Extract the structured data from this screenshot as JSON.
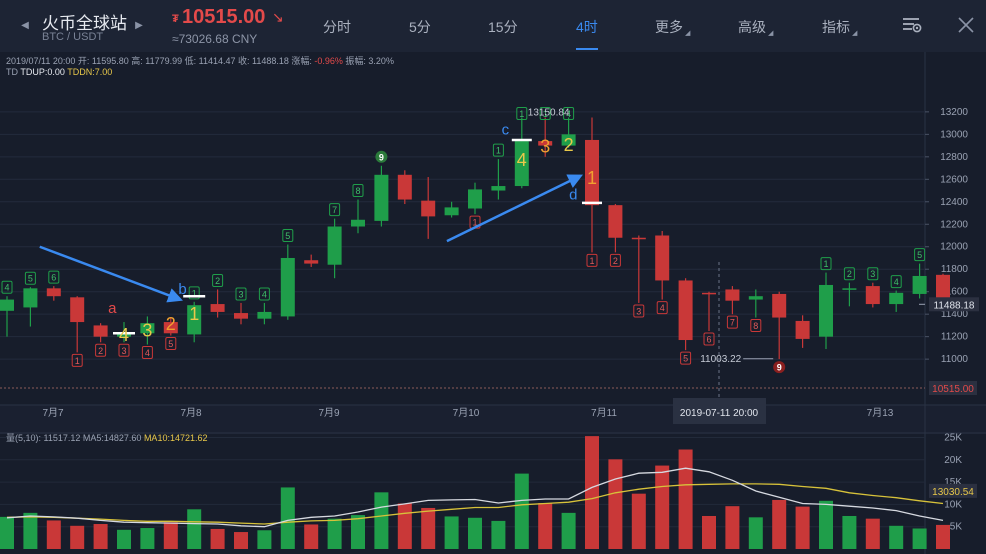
{
  "header": {
    "title": "火币全球站",
    "pair": "BTC / USDT",
    "price_symbol": "₮",
    "price": "10515.00",
    "price_cny": "≈73026.68 CNY",
    "tabs": [
      {
        "label": "分时",
        "active": false,
        "caret": false
      },
      {
        "label": "5分",
        "active": false,
        "caret": false
      },
      {
        "label": "15分",
        "active": false,
        "caret": false
      },
      {
        "label": "4时",
        "active": true,
        "caret": false
      },
      {
        "label": "更多",
        "active": false,
        "caret": true
      },
      {
        "label": "高级",
        "active": false,
        "caret": true
      },
      {
        "label": "指标",
        "active": false,
        "caret": true
      }
    ],
    "icons": [
      "chevron-left-icon",
      "chevron-right-icon",
      "arrow-down-right-icon",
      "chart-settings-icon",
      "close-icon"
    ]
  },
  "info": {
    "text": "2019/07/11 20:00 开: 11595.80 高: 11779.99 低: 11414.47 收: 11488.18 涨幅: ",
    "change": "-0.96%",
    "amplitude": " 振幅: 3.20%"
  },
  "td": {
    "label": "TD ",
    "up": "TDUP:0.00",
    "down": "TDDN:7.00"
  },
  "volume_info": {
    "text": "量(5,10): 11517.12 ",
    "ma5": "MA5:14827.60 ",
    "ma10": "MA10:14721.62"
  },
  "colors": {
    "up": "#1f9e4a",
    "down": "#c93838",
    "accent": "#3a8af0",
    "ma5": "#d6d9e0",
    "ma10": "#d7c23a"
  },
  "chart_data": {
    "type": "candlestick",
    "price_ticks": [
      11000,
      11200,
      11400,
      11600,
      11800,
      12000,
      12200,
      12400,
      12600,
      12800,
      13000,
      13200
    ],
    "price_range": [
      10480,
      13580
    ],
    "volume_ticks": [
      "5K",
      "10K",
      "15K",
      "20K",
      "25K"
    ],
    "volume_range": [
      0,
      26000
    ],
    "x_labels": [
      "7月7",
      "7月8",
      "7月9",
      "7月10",
      "7月11",
      "7月13"
    ],
    "crosshair_time": "2019-07-11 20:00",
    "current_price_label": "11488.18",
    "last_price_label": "10515.00",
    "volume_current_label": "13030.54",
    "high_label": "13150.84",
    "low_label": "11003.22",
    "candles": [
      {
        "o": 11430,
        "h": 11560,
        "l": 11200,
        "c": 11530,
        "v": 7200,
        "td": "4",
        "tdc": "g"
      },
      {
        "o": 11460,
        "h": 11640,
        "l": 11290,
        "c": 11630,
        "v": 8100,
        "td": "5",
        "tdc": "g"
      },
      {
        "o": 11630,
        "h": 11650,
        "l": 11520,
        "c": 11560,
        "v": 6400,
        "td": "6",
        "tdc": "g"
      },
      {
        "o": 11550,
        "h": 11560,
        "l": 11060,
        "c": 11330,
        "v": 5200,
        "td": "1",
        "tdc": "r"
      },
      {
        "o": 11300,
        "h": 11320,
        "l": 11150,
        "c": 11200,
        "v": 5600,
        "td": "2",
        "tdc": "r"
      },
      {
        "o": 11200,
        "h": 11330,
        "l": 11150,
        "c": 11240,
        "v": 4300,
        "td": "3",
        "tdc": "r"
      },
      {
        "o": 11230,
        "h": 11380,
        "l": 11130,
        "c": 11320,
        "v": 4700,
        "td": "4",
        "tdc": "r"
      },
      {
        "o": 11330,
        "h": 11370,
        "l": 11210,
        "c": 11230,
        "v": 6000,
        "td": "5",
        "tdc": "r"
      },
      {
        "o": 11220,
        "h": 11510,
        "l": 11150,
        "c": 11480,
        "v": 8900,
        "td": "1",
        "tdc": "g"
      },
      {
        "o": 11490,
        "h": 11620,
        "l": 11370,
        "c": 11420,
        "v": 4500,
        "td": "2",
        "tdc": "g"
      },
      {
        "o": 11410,
        "h": 11500,
        "l": 11310,
        "c": 11360,
        "v": 3800,
        "td": "3",
        "tdc": "g"
      },
      {
        "o": 11360,
        "h": 11500,
        "l": 11310,
        "c": 11420,
        "v": 4200,
        "td": "4",
        "tdc": "g"
      },
      {
        "o": 11380,
        "h": 12020,
        "l": 11350,
        "c": 11900,
        "v": 13800,
        "td": "5",
        "tdc": "g"
      },
      {
        "o": 11880,
        "h": 11930,
        "l": 11820,
        "c": 11850,
        "v": 5500,
        "td": "",
        "tdc": ""
      },
      {
        "o": 11840,
        "h": 12250,
        "l": 11720,
        "c": 12180,
        "v": 6800,
        "td": "7",
        "tdc": "g"
      },
      {
        "o": 12180,
        "h": 12420,
        "l": 12120,
        "c": 12240,
        "v": 7600,
        "td": "8",
        "tdc": "g"
      },
      {
        "o": 12230,
        "h": 12720,
        "l": 12180,
        "c": 12640,
        "v": 12700,
        "td": "9",
        "tdc": "gd"
      },
      {
        "o": 12640,
        "h": 12680,
        "l": 12380,
        "c": 12420,
        "v": 10200,
        "td": "",
        "tdc": ""
      },
      {
        "o": 12410,
        "h": 12620,
        "l": 12070,
        "c": 12270,
        "v": 9200,
        "td": "",
        "tdc": ""
      },
      {
        "o": 12280,
        "h": 12400,
        "l": 12260,
        "c": 12350,
        "v": 7300,
        "td": "",
        "tdc": ""
      },
      {
        "o": 12340,
        "h": 12570,
        "l": 12290,
        "c": 12510,
        "v": 7000,
        "td": "",
        "tdc": "r1"
      },
      {
        "o": 12500,
        "h": 12780,
        "l": 12420,
        "c": 12540,
        "v": 6300,
        "td": "1",
        "tdc": "g"
      },
      {
        "o": 12540,
        "h": 13150,
        "l": 12520,
        "c": 12940,
        "v": 16900,
        "td": "",
        "tdc": ""
      },
      {
        "o": 12940,
        "h": 13150,
        "l": 12800,
        "c": 12900,
        "v": 10300,
        "td": "",
        "tdc": ""
      },
      {
        "o": 12900,
        "h": 13150,
        "l": 12880,
        "c": 13000,
        "v": 8100,
        "td": "",
        "tdc": ""
      },
      {
        "o": 12950,
        "h": 13150,
        "l": 11950,
        "c": 12370,
        "v": 25300,
        "td": "1",
        "tdc": "r"
      },
      {
        "o": 12370,
        "h": 12380,
        "l": 11950,
        "c": 12080,
        "v": 20100,
        "td": "2",
        "tdc": "r"
      },
      {
        "o": 12080,
        "h": 12100,
        "l": 11500,
        "c": 12070,
        "v": 12400,
        "td": "3",
        "tdc": "r"
      },
      {
        "o": 12100,
        "h": 12140,
        "l": 11530,
        "c": 11700,
        "v": 18700,
        "td": "4",
        "tdc": "r"
      },
      {
        "o": 11700,
        "h": 11720,
        "l": 11080,
        "c": 11170,
        "v": 22300,
        "td": "5",
        "tdc": "r"
      },
      {
        "o": 11590,
        "h": 11600,
        "l": 11250,
        "c": 11580,
        "v": 7400,
        "td": "6",
        "tdc": "r"
      },
      {
        "o": 11620,
        "h": 11650,
        "l": 11400,
        "c": 11520,
        "v": 9600,
        "td": "7",
        "tdc": "r"
      },
      {
        "o": 11530,
        "h": 11620,
        "l": 11370,
        "c": 11560,
        "v": 7100,
        "td": "8",
        "tdc": "r"
      },
      {
        "o": 11580,
        "h": 11600,
        "l": 11000,
        "c": 11370,
        "v": 11000,
        "td": "9",
        "tdc": "rd"
      },
      {
        "o": 11340,
        "h": 11390,
        "l": 11100,
        "c": 11180,
        "v": 9500,
        "td": "",
        "tdc": ""
      },
      {
        "o": 11200,
        "h": 11770,
        "l": 11090,
        "c": 11660,
        "v": 10800,
        "td": "1",
        "tdc": "g"
      },
      {
        "o": 11620,
        "h": 11680,
        "l": 11470,
        "c": 11630,
        "v": 7400,
        "td": "2",
        "tdc": "g"
      },
      {
        "o": 11650,
        "h": 11680,
        "l": 11460,
        "c": 11490,
        "v": 6800,
        "td": "3",
        "tdc": "g"
      },
      {
        "o": 11490,
        "h": 11610,
        "l": 11420,
        "c": 11590,
        "v": 5200,
        "td": "4",
        "tdc": "g"
      },
      {
        "o": 11580,
        "h": 11850,
        "l": 11540,
        "c": 11740,
        "v": 4600,
        "td": "5",
        "tdc": "g"
      },
      {
        "o": 11750,
        "h": 11760,
        "l": 11460,
        "c": 11490,
        "v": 5400,
        "td": "",
        "tdc": ""
      }
    ],
    "ma5": [
      7000,
      7400,
      7200,
      6900,
      6400,
      6000,
      5900,
      5800,
      5700,
      5600,
      5200,
      5000,
      6400,
      7100,
      7400,
      8300,
      9400,
      10100,
      10900,
      11000,
      11100,
      10300,
      10900,
      11200,
      11200,
      13800,
      15700,
      17000,
      17200,
      18100,
      17300,
      15400,
      13000,
      11600,
      10200,
      10000,
      9600,
      9200,
      8600,
      7400,
      6400
    ],
    "ma10": [
      7100,
      7200,
      7100,
      6900,
      6700,
      6400,
      6200,
      6200,
      6100,
      6000,
      5800,
      5600,
      6000,
      6300,
      6400,
      6800,
      7400,
      8000,
      8500,
      8900,
      9300,
      9300,
      9900,
      10200,
      10500,
      11300,
      12600,
      13400,
      14000,
      14400,
      14500,
      14600,
      14600,
      14500,
      14000,
      13600,
      12600,
      12000,
      11500,
      10800,
      10200
    ],
    "annotations": [
      {
        "text": "a",
        "color": "#e34a4a",
        "i": 4.5,
        "price": 11410,
        "size": 15
      },
      {
        "text": "4",
        "color": "#e8c84a",
        "i": 5,
        "price": 11160,
        "size": 18
      },
      {
        "text": "3",
        "color": "#e8c84a",
        "i": 6,
        "price": 11200,
        "size": 18
      },
      {
        "text": "2",
        "color": "#f0a030",
        "i": 7,
        "price": 11260,
        "size": 18
      },
      {
        "text": "1",
        "color": "#e8c84a",
        "i": 8,
        "price": 11350,
        "size": 18
      },
      {
        "text": "b",
        "color": "#3a8af0",
        "i": 7.5,
        "price": 11580,
        "size": 15
      },
      {
        "text": "c",
        "color": "#3a8af0",
        "i": 21.3,
        "price": 13000,
        "size": 15
      },
      {
        "text": "4",
        "color": "#e8c84a",
        "i": 22,
        "price": 12720,
        "size": 18
      },
      {
        "text": "3",
        "color": "#f0a030",
        "i": 23,
        "price": 12840,
        "size": 18
      },
      {
        "text": "2",
        "color": "#e8c84a",
        "i": 24,
        "price": 12850,
        "size": 18
      },
      {
        "text": "1",
        "color": "#f0a030",
        "i": 25,
        "price": 12560,
        "size": 18
      },
      {
        "text": "d",
        "color": "#3a8af0",
        "i": 24.2,
        "price": 12420,
        "size": 15
      }
    ],
    "level_marks": [
      {
        "i": 5,
        "price": 11230,
        "w": 22
      },
      {
        "i": 8,
        "price": 11560,
        "w": 22
      },
      {
        "i": 22,
        "price": 12950,
        "w": 20
      },
      {
        "i": 25,
        "price": 12390,
        "w": 20
      }
    ],
    "arrows": [
      {
        "from": [
          1.4,
          12000
        ],
        "to": [
          7.4,
          11530
        ]
      },
      {
        "from": [
          18.8,
          12050
        ],
        "to": [
          24.5,
          12630
        ]
      }
    ]
  }
}
